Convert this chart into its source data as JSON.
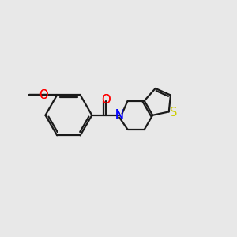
{
  "bg_color": "#e8e8e8",
  "bond_color": "#1a1a1a",
  "O_color": "#ff0000",
  "N_color": "#0000ff",
  "S_color": "#cccc00",
  "line_width": 1.6,
  "font_size": 10.5,
  "fig_bg": "#e8e8e8",
  "xlim": [
    -5.0,
    5.5
  ],
  "ylim": [
    -2.8,
    2.8
  ]
}
